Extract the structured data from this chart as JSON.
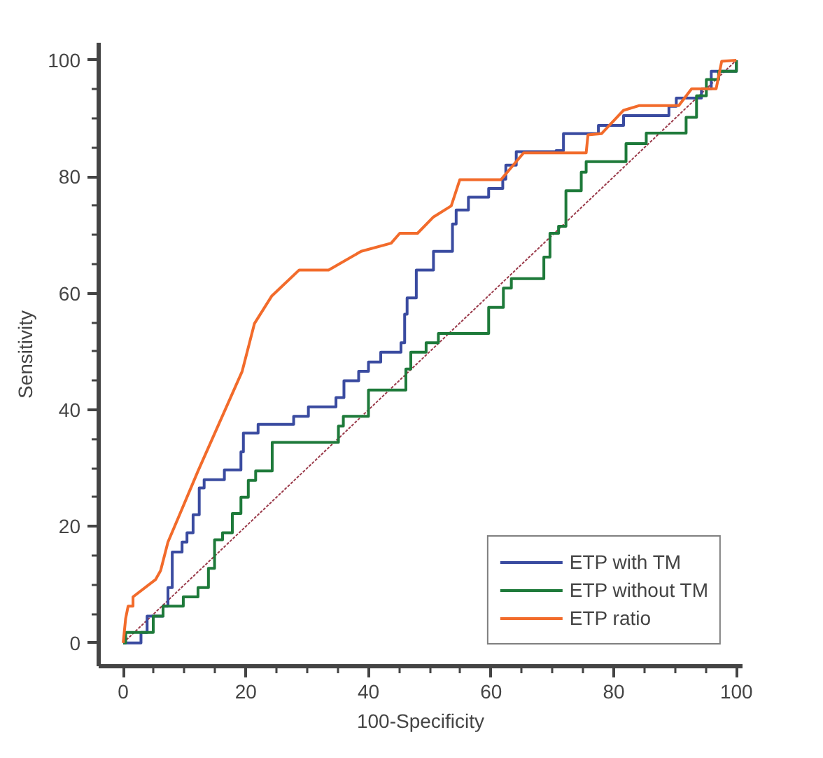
{
  "chart_data": {
    "type": "line",
    "xlabel": "100-Specificity",
    "ylabel": "Sensitivity",
    "xlim": [
      -4,
      101
    ],
    "ylim": [
      -4,
      103
    ],
    "xticks": [
      0,
      {
        "value": 5,
        "label": null
      },
      {
        "value": 10,
        "label": null
      },
      {
        "value": 15,
        "label": null
      },
      20,
      {
        "value": 25,
        "label": null
      },
      {
        "value": 30,
        "label": null
      },
      {
        "value": 35,
        "label": null
      },
      40,
      {
        "value": 45,
        "label": null
      },
      {
        "value": 50,
        "label": null
      },
      {
        "value": 55,
        "label": null
      },
      60,
      {
        "value": 65,
        "label": null
      },
      {
        "value": 70,
        "label": null
      },
      {
        "value": 75,
        "label": null
      },
      80,
      {
        "value": 85,
        "label": null
      },
      {
        "value": 90,
        "label": null
      },
      {
        "value": 95,
        "label": null
      },
      100
    ],
    "yticks": [
      0,
      {
        "value": 5,
        "label": null
      },
      {
        "value": 10,
        "label": null
      },
      {
        "value": 15,
        "label": null
      },
      20,
      {
        "value": 25,
        "label": null
      },
      {
        "value": 30,
        "label": null
      },
      {
        "value": 35,
        "label": null
      },
      40,
      {
        "value": 45,
        "label": null
      },
      {
        "value": 50,
        "label": null
      },
      {
        "value": 55,
        "label": null
      },
      60,
      {
        "value": 65,
        "label": null
      },
      {
        "value": 70,
        "label": null
      },
      {
        "value": 75,
        "label": null
      },
      80,
      {
        "value": 85,
        "label": null
      },
      {
        "value": 90,
        "label": null
      },
      {
        "value": 95,
        "label": null
      },
      100
    ],
    "grid": false,
    "legend": "bottom right",
    "series": [
      {
        "name": null,
        "line_style": "dotted",
        "color": "#9a3a4a",
        "x": [
          0,
          100
        ],
        "values": [
          0,
          100
        ]
      },
      {
        "name": "ETP with TM",
        "type": "step",
        "color": "#3a4ba0",
        "x": [
          0,
          2.9,
          3.9,
          6.5,
          7.3,
          8,
          9.6,
          10.4,
          11.4,
          12.4,
          13.2,
          16.5,
          19.2,
          19.6,
          22,
          27.8,
          30.2,
          34.7,
          36,
          38.4,
          40,
          42,
          45.3,
          45.9,
          46.3,
          47.8,
          50.6,
          53.7,
          54.3,
          56.3,
          59.6,
          61.9,
          62.4,
          64.1,
          70.6,
          71.8,
          77.5,
          81.6,
          89,
          90.2,
          94.3,
          95.9,
          100
        ],
        "values": [
          0,
          1.8,
          4.6,
          6.3,
          9.5,
          15.6,
          17.3,
          18.9,
          22,
          26.6,
          28,
          29.7,
          32.8,
          36,
          37.5,
          38.9,
          40.5,
          42.1,
          45,
          46.6,
          48.2,
          49.9,
          51.5,
          56.4,
          59.2,
          64,
          67.2,
          71.9,
          74.3,
          76.5,
          78,
          79.6,
          82,
          84.3,
          84.5,
          87.4,
          88.8,
          90.5,
          92.1,
          93.5,
          95.1,
          98.1,
          100
        ]
      },
      {
        "name": "ETP without TM",
        "type": "step",
        "color": "#1e7a3a",
        "x": [
          0,
          0.4,
          4.9,
          6.5,
          9.8,
          12.2,
          13.9,
          14.9,
          16.2,
          17.8,
          19.2,
          20.4,
          21.6,
          24.3,
          35.1,
          35.9,
          40,
          46.1,
          46.9,
          49.4,
          51.4,
          59.6,
          62,
          63.3,
          68.6,
          69.6,
          71,
          72.2,
          74.7,
          75.5,
          82,
          85.3,
          91.8,
          93.5,
          95.1,
          97.1,
          100
        ],
        "values": [
          0,
          1.8,
          4.6,
          6.3,
          7.9,
          9.5,
          12.8,
          17.7,
          18.9,
          22.2,
          25,
          27.9,
          29.5,
          34.4,
          37.2,
          38.9,
          43.4,
          47,
          49.9,
          51.5,
          53.1,
          57.6,
          60.9,
          62.5,
          66.2,
          70.3,
          71.5,
          77.6,
          80.8,
          82.6,
          85.7,
          87.5,
          90.2,
          93.9,
          96.7,
          98.1,
          100
        ]
      },
      {
        "name": "ETP ratio",
        "color": "#f26b2b",
        "x": [
          0,
          0.4,
          0.8,
          1.6,
          1.6,
          5.3,
          6.1,
          7.3,
          12.2,
          19.4,
          21.4,
          24.2,
          28.7,
          33.5,
          38.8,
          43.7,
          45.1,
          48,
          50.6,
          53.5,
          54.9,
          61.6,
          65.3,
          75.5,
          75.8,
          78,
          81.6,
          84.1,
          90.6,
          92.7,
          96.7,
          97.6,
          100
        ],
        "values": [
          0,
          4.2,
          6.3,
          6.3,
          7.9,
          10.9,
          12.4,
          17.3,
          29.5,
          46.6,
          54.8,
          59.5,
          64,
          64,
          67.2,
          68.6,
          70.3,
          70.3,
          73.1,
          75,
          79.5,
          79.5,
          84.1,
          84.1,
          87.2,
          87.4,
          91.4,
          92.2,
          92.2,
          95.1,
          95.1,
          99.8,
          100
        ]
      }
    ]
  }
}
